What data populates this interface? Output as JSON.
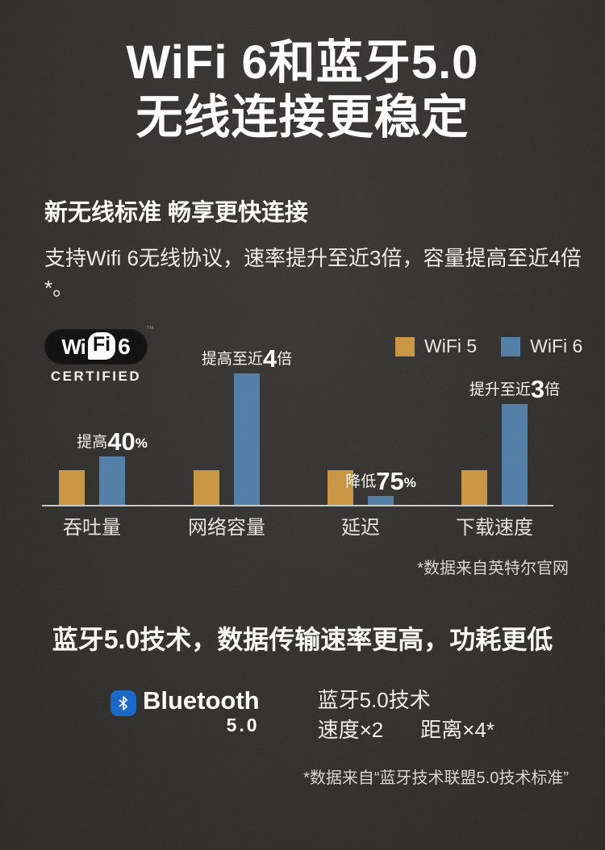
{
  "page": {
    "title_line1": "WiFi 6和蓝牙5.0",
    "title_line2": "无线连接更稳定"
  },
  "intro": {
    "heading": "新无线标准 畅享更快连接",
    "body": "支持Wifi 6无线协议，速率提升至近3倍，容量提高至近4倍*。"
  },
  "wifi_logo": {
    "wi": "Wi",
    "fi": "Fi",
    "six": "6",
    "tm": "™",
    "certified": "CERTIFIED"
  },
  "chart_data": {
    "type": "bar",
    "title": "",
    "categories": [
      "吞吐量",
      "网络容量",
      "延迟",
      "下载速度"
    ],
    "series": [
      {
        "name": "WiFi 5",
        "color": "#C9953F",
        "values": [
          1,
          1,
          1,
          1
        ]
      },
      {
        "name": "WiFi 6",
        "color": "#4F7DA7",
        "values": [
          1.4,
          3.8,
          0.25,
          2.9
        ]
      }
    ],
    "values_unit": "relative to WiFi 5 = 1",
    "annotations": [
      {
        "prefix": "提高",
        "value": "40",
        "suffix": "%"
      },
      {
        "prefix": "提高至近",
        "value": "4",
        "suffix": "倍"
      },
      {
        "prefix": "降低",
        "value": "75",
        "suffix": "%"
      },
      {
        "prefix": "提升至近",
        "value": "3",
        "suffix": "倍"
      }
    ],
    "legend_position": "top-right",
    "grid": false,
    "footnote": "*数据来自英特尔官网"
  },
  "bluetooth": {
    "heading": "蓝牙5.0技术，数据传输速率更高，功耗更低",
    "logo_text": "Bluetooth",
    "logo_version": "5.0",
    "desc_line1": "蓝牙5.0技术",
    "speed": "速度×2",
    "distance": "距离×4*",
    "footnote": "*数据来自“蓝牙技术联盟5.0技术标准”"
  },
  "colors": {
    "background": "#2E2D2B",
    "wifi5": "#C9953F",
    "wifi6": "#4F7DA7",
    "bluetooth_blue": "#1464C6"
  }
}
